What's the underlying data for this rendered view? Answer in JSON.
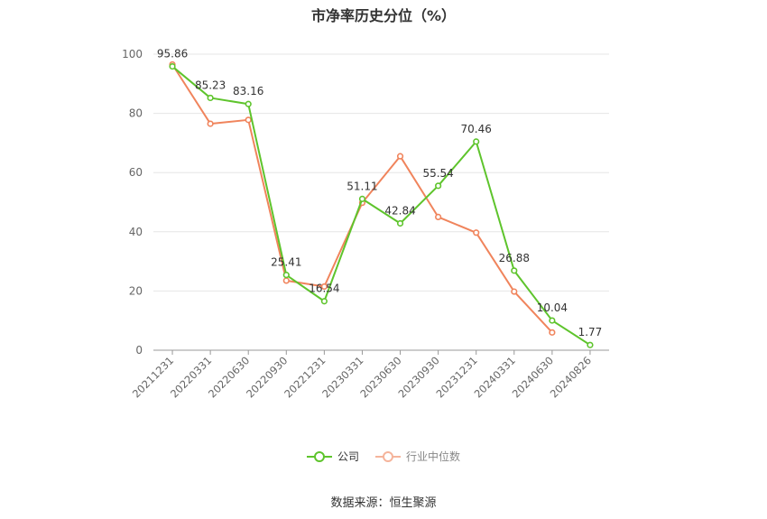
{
  "chart_data": {
    "type": "line",
    "title": "市净率历史分位（%）",
    "categories": [
      "20211231",
      "20220331",
      "20220630",
      "20220930",
      "20221231",
      "20230331",
      "20230630",
      "20230930",
      "20231231",
      "20240331",
      "20240630",
      "20240826"
    ],
    "series": [
      {
        "name": "公司",
        "color": "#5ec42c",
        "values": [
          95.86,
          85.23,
          83.16,
          25.41,
          16.54,
          51.11,
          42.84,
          55.54,
          70.46,
          26.88,
          10.04,
          1.77
        ],
        "labels": [
          "95.86",
          "85.23",
          "83.16",
          "25.41",
          "16.54",
          "51.11",
          "42.84",
          "55.54",
          "70.46",
          "26.88",
          "10.04",
          "1.77"
        ]
      },
      {
        "name": "行业中位数",
        "color": "#f0845c",
        "values": [
          96.5,
          76.5,
          77.8,
          23.5,
          21.5,
          49.8,
          65.5,
          45.0,
          39.7,
          19.8,
          6.0,
          null
        ]
      }
    ],
    "ylim": [
      0,
      100
    ],
    "yticks": [
      "0",
      "20",
      "40",
      "60",
      "80",
      "100"
    ],
    "grid": true,
    "legend_position": "bottom"
  },
  "footer": {
    "source": "数据来源：恒生聚源"
  }
}
